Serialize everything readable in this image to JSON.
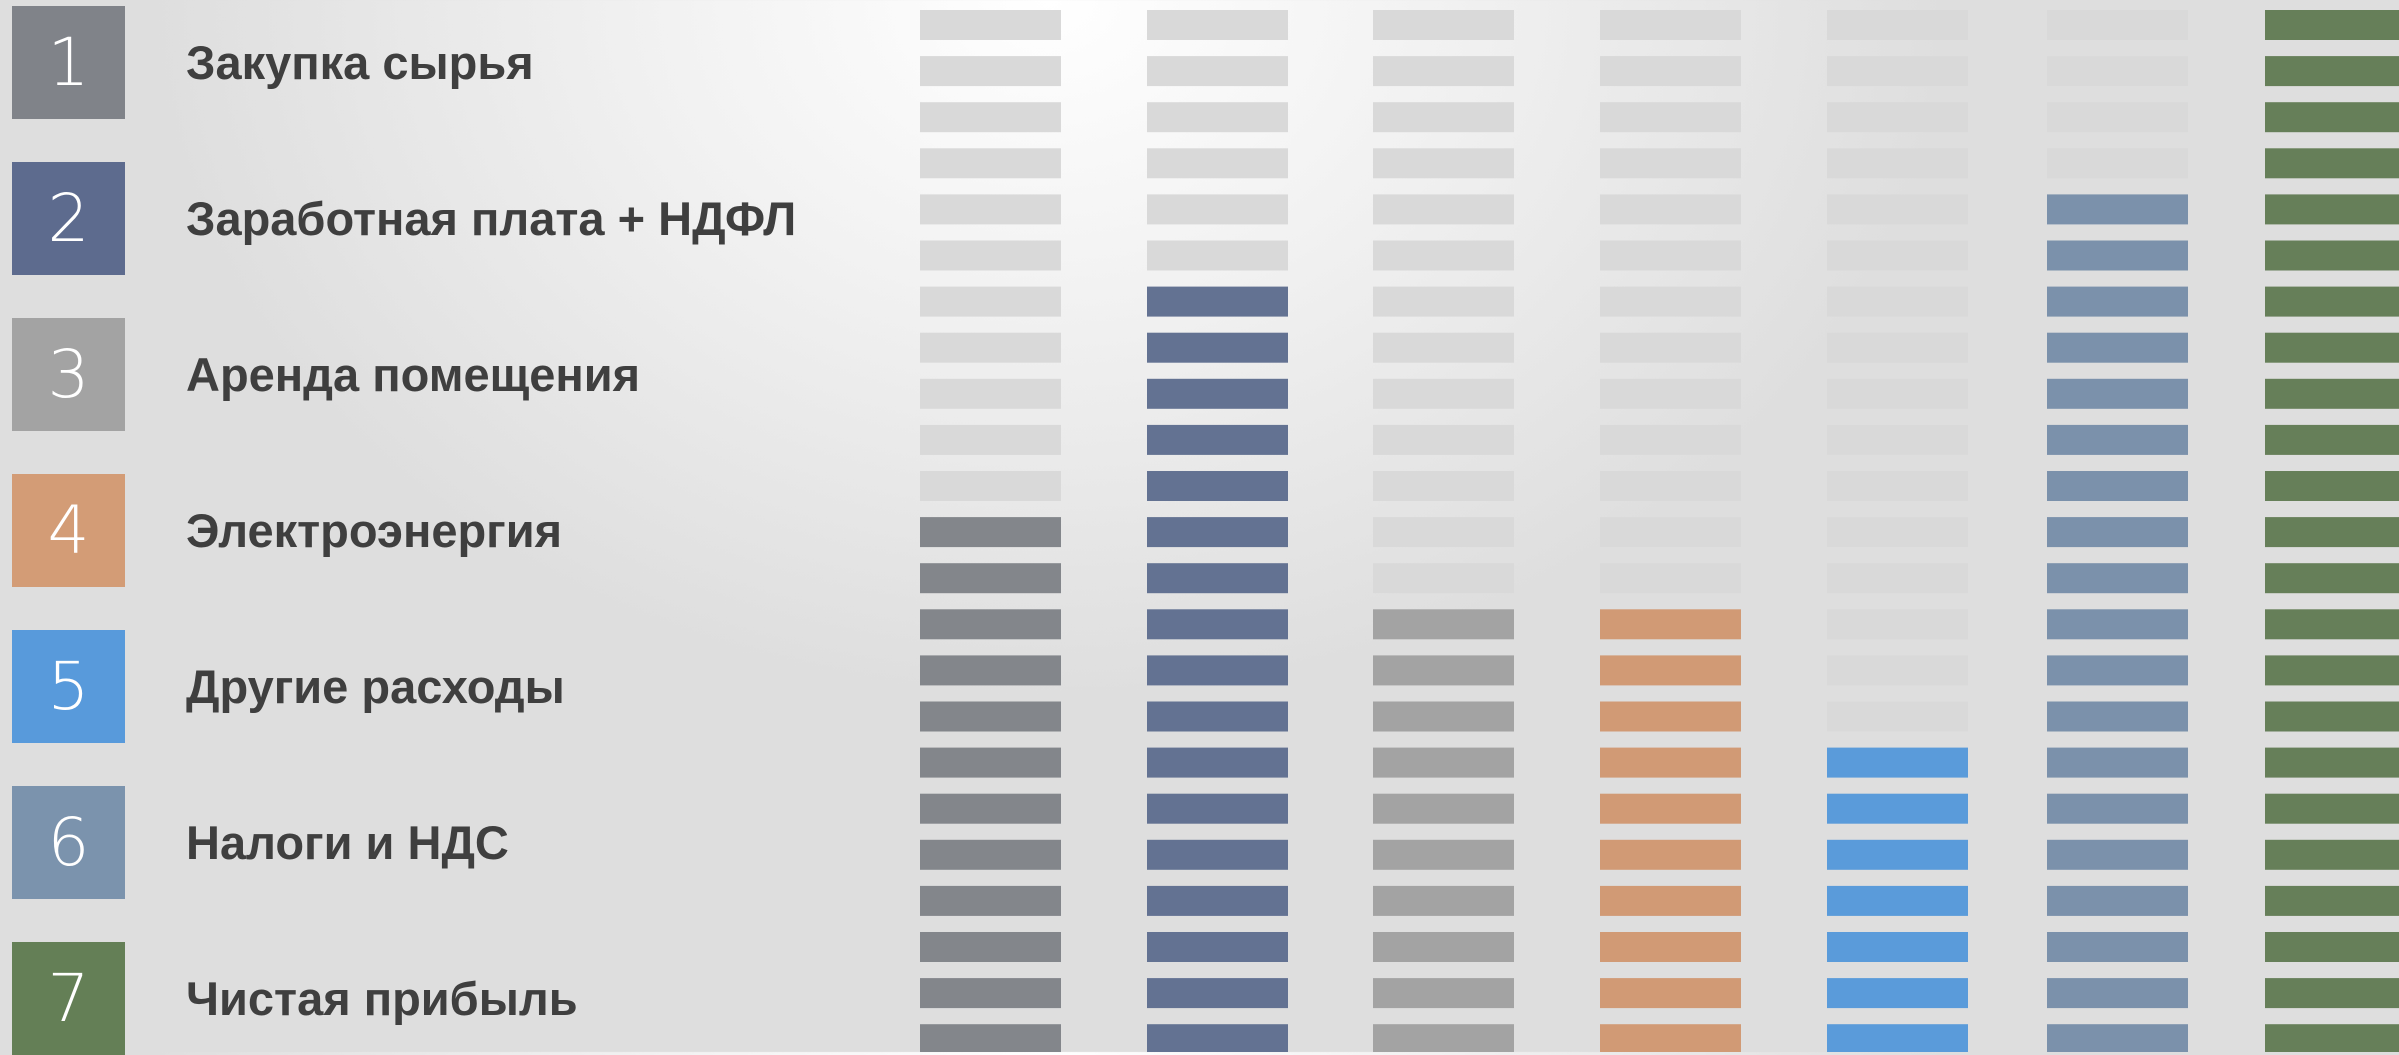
{
  "legend": [
    {
      "number": "1",
      "label": "Закупка сырья",
      "color": "#808389"
    },
    {
      "number": "2",
      "label": "Заработная плата + НДФЛ",
      "color": "#5d6b8e"
    },
    {
      "number": "3",
      "label": "Аренда помещения",
      "color": "#a3a3a3"
    },
    {
      "number": "4",
      "label": "Электроэнергия",
      "color": "#d39c76"
    },
    {
      "number": "5",
      "label": "Другие расходы",
      "color": "#589adb"
    },
    {
      "number": "6",
      "label": "Налоги и НДС",
      "color": "#7b93ad"
    },
    {
      "number": "7",
      "label": "Чистая прибыль",
      "color": "#647f56"
    }
  ],
  "chart_data": {
    "type": "bar",
    "segments_total": 23,
    "inactive_color": "#d9d9d9",
    "series": [
      {
        "number": "1",
        "filled_segments": 12,
        "color": "#83868b"
      },
      {
        "number": "2",
        "filled_segments": 17,
        "color": "#637292"
      },
      {
        "number": "3",
        "filled_segments": 10,
        "color": "#a3a3a3"
      },
      {
        "number": "4",
        "filled_segments": 10,
        "color": "#d19a75"
      },
      {
        "number": "5",
        "filled_segments": 7,
        "color": "#5a9bda"
      },
      {
        "number": "6",
        "filled_segments": 19,
        "color": "#7b91ab"
      },
      {
        "number": "7",
        "filled_segments": 23,
        "color": "#667f59"
      }
    ]
  }
}
